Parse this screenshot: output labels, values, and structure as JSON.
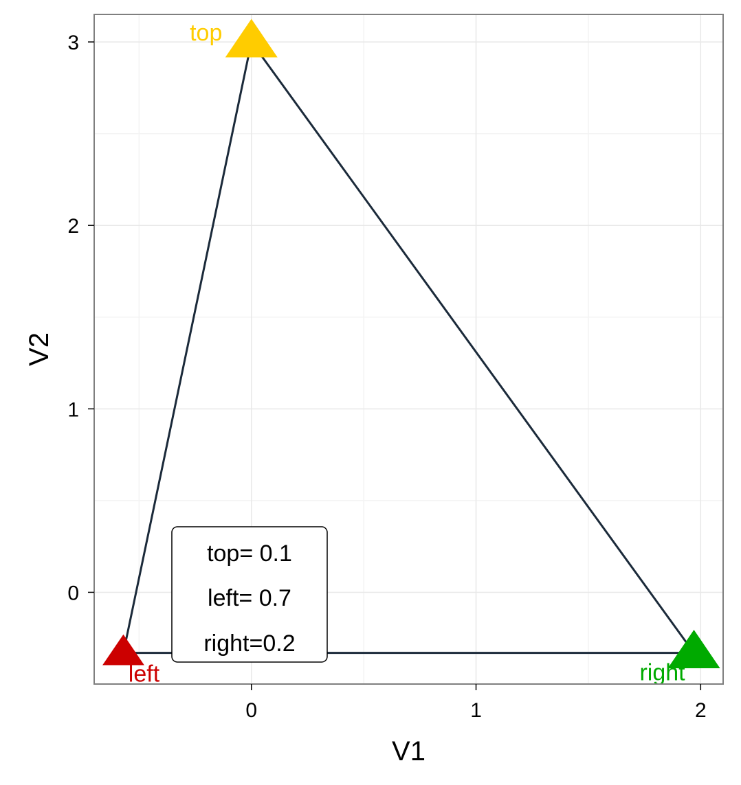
{
  "chart_data": {
    "type": "scatter",
    "title": "",
    "xlabel": "V1",
    "ylabel": "V2",
    "xlim": [
      -0.7,
      2.1
    ],
    "ylim": [
      -0.5,
      3.15
    ],
    "x_ticks": [
      0,
      1,
      2
    ],
    "y_ticks": [
      0,
      1,
      2,
      3
    ],
    "x_tick_labels": [
      "0",
      "1",
      "2"
    ],
    "y_tick_labels": [
      "0",
      "1",
      "2",
      "3"
    ],
    "x_minor_grid": [
      -0.5,
      0.5,
      1.5
    ],
    "y_minor_grid": [
      0.5,
      1.5,
      2.5
    ],
    "grid": true,
    "vertices": [
      {
        "label": "top",
        "x": 0,
        "y": 3,
        "color": "#FFCC00",
        "marker": "triangle"
      },
      {
        "label": "left",
        "x": -0.57,
        "y": -0.33,
        "color": "#CC0000",
        "marker": "triangle"
      },
      {
        "label": "right",
        "x": 1.97,
        "y": -0.33,
        "color": "#00AA00",
        "marker": "triangle"
      }
    ],
    "edge_color": "#1B2A3A",
    "legend": {
      "lines": [
        "top= 0.1",
        "left= 0.7",
        "right=0.2"
      ]
    }
  }
}
